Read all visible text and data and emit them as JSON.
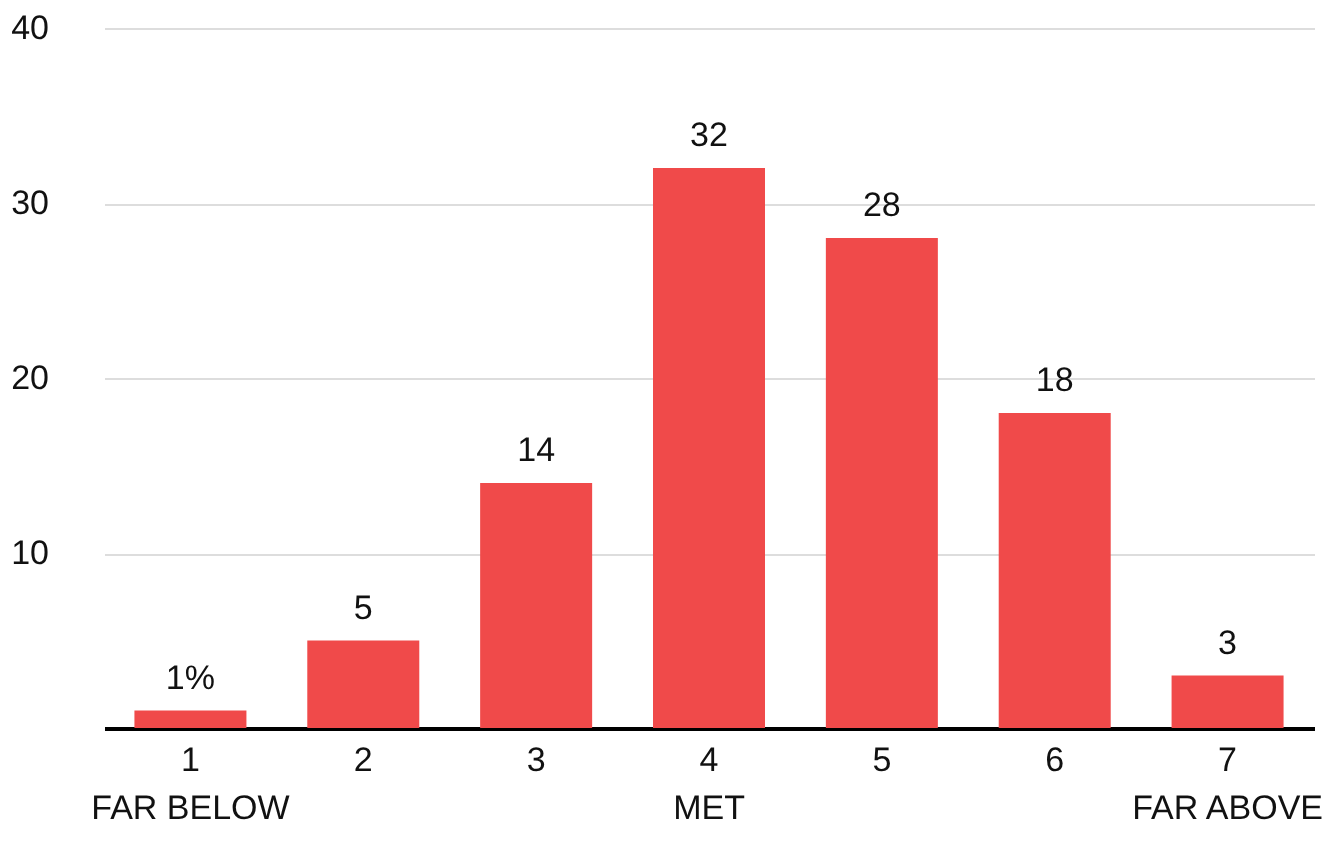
{
  "chart_data": {
    "type": "bar",
    "categories": [
      "1\nFAR BELOW",
      "2",
      "3",
      "4\nMET",
      "5",
      "6",
      "7\nFAR ABOVE"
    ],
    "values": [
      1,
      5,
      14,
      32,
      28,
      18,
      3
    ],
    "value_labels": [
      "1%",
      "5",
      "14",
      "32",
      "28",
      "18",
      "3"
    ],
    "color": "#f04a4a",
    "ylim": [
      0,
      40
    ],
    "yticks": [
      10,
      20,
      30,
      40
    ],
    "grid": "y"
  }
}
